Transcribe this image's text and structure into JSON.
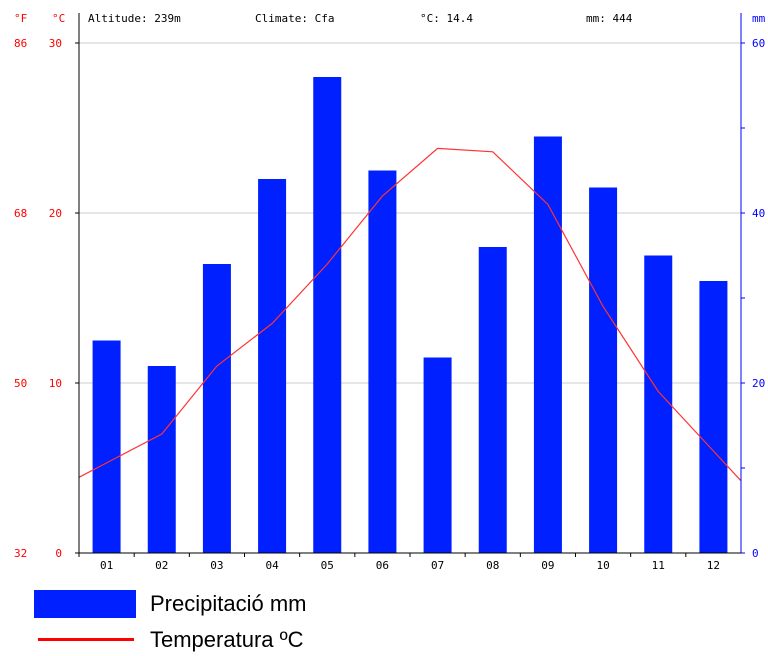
{
  "header": {
    "unit_f": "°F",
    "unit_c": "°C",
    "altitude": "Altitude: 239m",
    "climate": "Climate: Cfa",
    "avg_temp": "°C: 14.4",
    "total_precip": "mm: 444",
    "unit_mm": "mm"
  },
  "legend": {
    "precip_label": "Precipitació mm",
    "temp_label": "Temperatura ºC"
  },
  "colors": {
    "bar": "#0020ff",
    "line": "#ff3333",
    "axis_red": "#ff0000",
    "axis_blue": "#0000ff",
    "grid": "#cccccc"
  },
  "chart_data": {
    "type": "bar",
    "categories": [
      "01",
      "02",
      "03",
      "04",
      "05",
      "06",
      "07",
      "08",
      "09",
      "10",
      "11",
      "12"
    ],
    "series": [
      {
        "values": [
          25,
          22,
          34,
          44,
          56,
          45,
          23,
          36,
          49,
          43,
          35,
          32
        ]
      },
      {
        "values": [
          5.3,
          7.0,
          11.0,
          13.5,
          17.0,
          21.0,
          23.8,
          23.6,
          20.5,
          14.5,
          9.5,
          6.0
        ]
      }
    ],
    "y_left_ticks": [
      "0",
      "10",
      "20",
      "30"
    ],
    "y_left_ticks_f": [
      "32",
      "50",
      "68",
      "86"
    ],
    "y_right_ticks": [
      "0",
      "20",
      "40",
      "60"
    ],
    "ylim_temp": [
      0,
      30
    ],
    "ylim_precip": [
      0,
      60
    ],
    "grid": true
  }
}
